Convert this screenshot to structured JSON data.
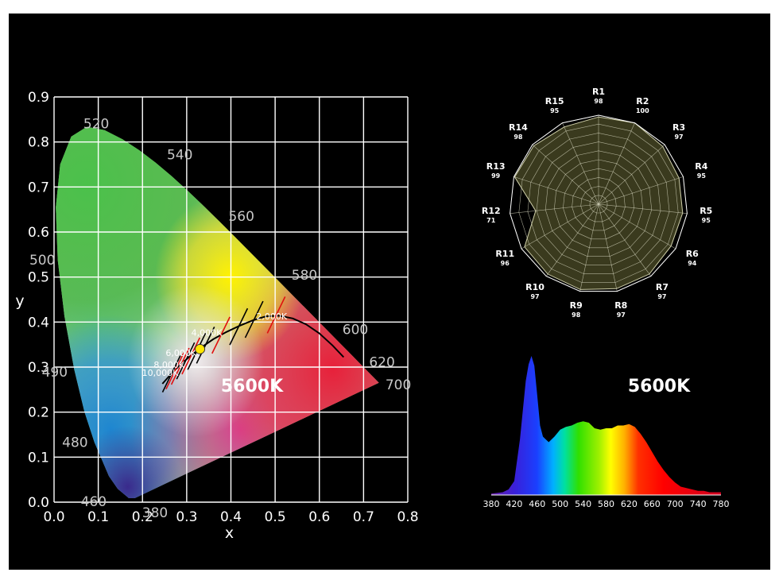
{
  "colors": {
    "background": "#000000",
    "grid": "#ffffff",
    "planckian_locus": "#000000",
    "white_point": "#ffe600",
    "radar_fill": "#3a3a1e"
  },
  "chart_data": [
    {
      "type": "scatter",
      "chart": "CIE 1931 chromaticity diagram",
      "xlabel": "x",
      "ylabel": "y",
      "xlim": [
        0.0,
        0.8
      ],
      "ylim": [
        0.0,
        0.9
      ],
      "xticks": [
        "0.0",
        "0.1",
        "0.2",
        "0.3",
        "0.4",
        "0.5",
        "0.6",
        "0.7",
        "0.8"
      ],
      "yticks": [
        "0.0",
        "0.1",
        "0.2",
        "0.3",
        "0.4",
        "0.5",
        "0.6",
        "0.7",
        "0.8",
        "0.9"
      ],
      "grid": true,
      "spectral_locus_labels": [
        {
          "label": "380",
          "x": 0.174,
          "y": 0.005
        },
        {
          "label": "460",
          "x": 0.144,
          "y": 0.03
        },
        {
          "label": "480",
          "x": 0.091,
          "y": 0.133
        },
        {
          "label": "490",
          "x": 0.045,
          "y": 0.295
        },
        {
          "label": "500",
          "x": 0.008,
          "y": 0.538
        },
        {
          "label": "520",
          "x": 0.074,
          "y": 0.834
        },
        {
          "label": "540",
          "x": 0.23,
          "y": 0.754
        },
        {
          "label": "560",
          "x": 0.373,
          "y": 0.625
        },
        {
          "label": "580",
          "x": 0.512,
          "y": 0.487
        },
        {
          "label": "600",
          "x": 0.627,
          "y": 0.373
        },
        {
          "label": "620",
          "x": 0.691,
          "y": 0.308
        },
        {
          "label": "700",
          "x": 0.735,
          "y": 0.265
        }
      ],
      "cct_labels": [
        {
          "label": "10,000K",
          "x": 0.281,
          "y": 0.288
        },
        {
          "label": "8,000K",
          "x": 0.295,
          "y": 0.305
        },
        {
          "label": "6,000K",
          "x": 0.322,
          "y": 0.332
        },
        {
          "label": "4,000K",
          "x": 0.38,
          "y": 0.377
        },
        {
          "label": "2,000K",
          "x": 0.527,
          "y": 0.413
        }
      ],
      "white_point": {
        "x": 0.33,
        "y": 0.34
      },
      "annotation": "5600K"
    },
    {
      "type": "radar",
      "chart": "color rendering indices",
      "categories": [
        "R1",
        "R2",
        "R3",
        "R4",
        "R5",
        "R6",
        "R7",
        "R8",
        "R9",
        "R10",
        "R11",
        "R12",
        "R13",
        "R14",
        "R15"
      ],
      "values": [
        98,
        100,
        97,
        95,
        95,
        94,
        97,
        97,
        98,
        97,
        96,
        71,
        99,
        98,
        95
      ],
      "range": [
        0,
        100
      ]
    },
    {
      "type": "area",
      "chart": "spectral power distribution",
      "annotation": "5600K",
      "xticks": [
        "380",
        "420",
        "460",
        "500",
        "540",
        "580",
        "620",
        "660",
        "700",
        "740",
        "780"
      ],
      "xlim": [
        380,
        780
      ],
      "x": [
        380,
        400,
        410,
        420,
        430,
        440,
        445,
        450,
        455,
        460,
        465,
        470,
        475,
        480,
        490,
        500,
        510,
        520,
        530,
        540,
        550,
        560,
        570,
        580,
        590,
        600,
        610,
        620,
        630,
        640,
        650,
        660,
        670,
        680,
        690,
        700,
        710,
        720,
        730,
        740,
        750,
        760,
        770,
        780
      ],
      "values": [
        0.01,
        0.02,
        0.04,
        0.1,
        0.4,
        0.82,
        0.94,
        1.0,
        0.93,
        0.72,
        0.5,
        0.42,
        0.4,
        0.38,
        0.42,
        0.47,
        0.49,
        0.5,
        0.52,
        0.53,
        0.52,
        0.48,
        0.47,
        0.48,
        0.48,
        0.5,
        0.5,
        0.51,
        0.49,
        0.44,
        0.38,
        0.31,
        0.24,
        0.18,
        0.13,
        0.09,
        0.06,
        0.05,
        0.04,
        0.03,
        0.03,
        0.02,
        0.02,
        0.02
      ]
    }
  ]
}
